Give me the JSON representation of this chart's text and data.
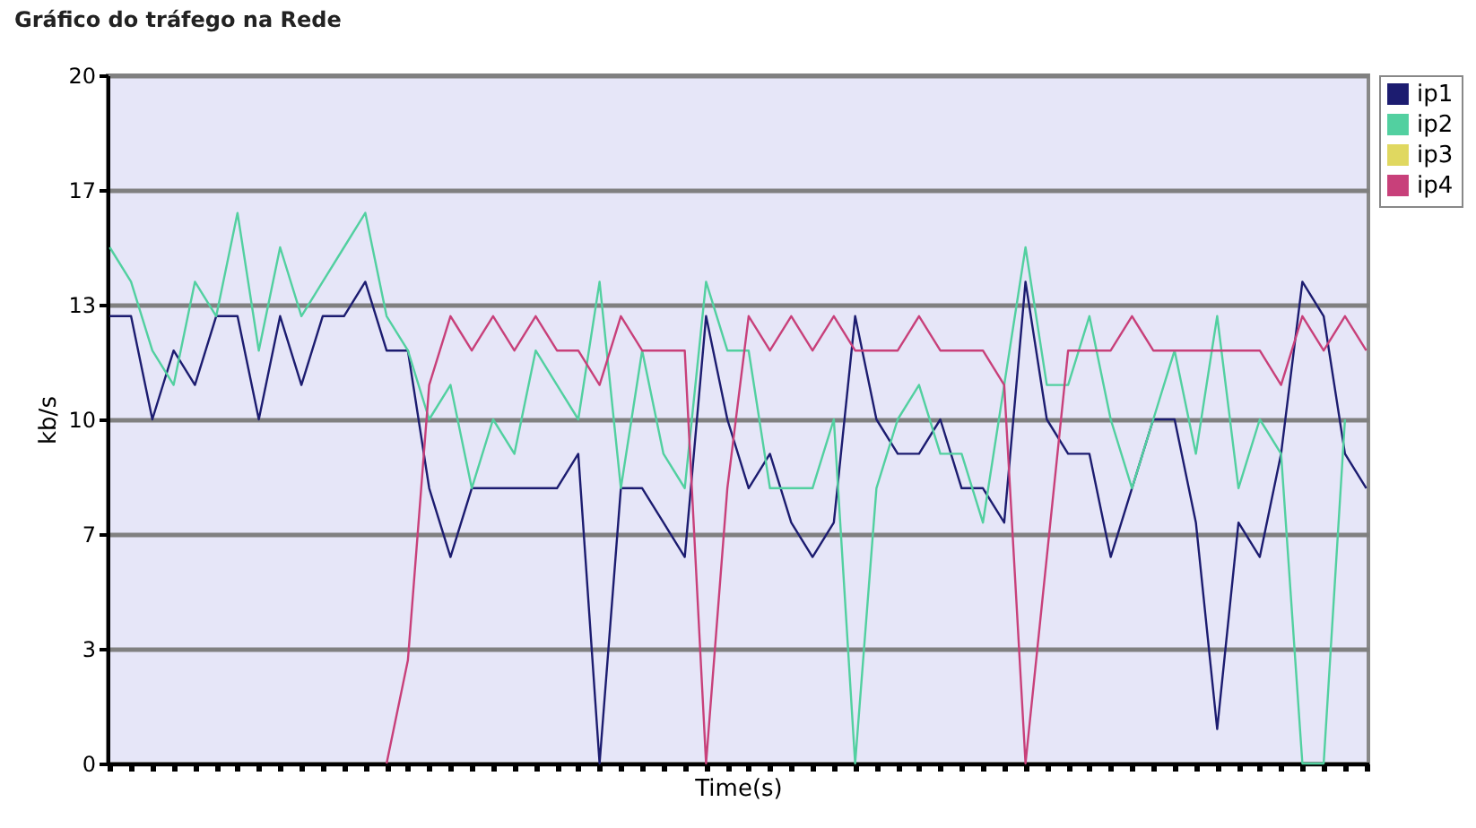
{
  "chart_data": {
    "type": "line",
    "title": "Gráfico do tráfego na Rede",
    "xlabel": "Time(s)",
    "ylabel": "kb/s",
    "categories": [
      null,
      null,
      null,
      null,
      null,
      null,
      null,
      null,
      null,
      null,
      null,
      null,
      null,
      null,
      null,
      null,
      null,
      null,
      null,
      null,
      null,
      null,
      null,
      null,
      null,
      null,
      null,
      null,
      null,
      null,
      null,
      null,
      null,
      null,
      null,
      null,
      null,
      null,
      null,
      null,
      null,
      null,
      null,
      null,
      null,
      null,
      null,
      null,
      null,
      null,
      null,
      null,
      null,
      null,
      null,
      null,
      null,
      null,
      null,
      null
    ],
    "series": [
      {
        "name": "ip1",
        "color": "#1c1c70",
        "values": [
          13,
          13,
          10,
          12,
          11,
          13,
          13,
          10,
          13,
          11,
          13,
          13,
          14,
          12,
          12,
          8,
          6,
          8,
          8,
          8,
          8,
          8,
          9,
          0,
          8,
          8,
          7,
          6,
          13,
          10,
          8,
          9,
          7,
          6,
          7,
          13,
          10,
          9,
          9,
          10,
          8,
          8,
          7,
          14,
          10,
          9,
          9,
          6,
          8,
          10,
          10,
          7,
          1,
          7,
          6,
          9,
          14,
          13,
          9,
          8
        ]
      },
      {
        "name": "ip2",
        "color": "#52d0a0",
        "values": [
          15,
          14,
          12,
          11,
          14,
          13,
          16,
          12,
          15,
          13,
          14,
          15,
          16,
          13,
          12,
          10,
          11,
          8,
          10,
          9,
          12,
          11,
          10,
          14,
          8,
          12,
          9,
          8,
          14,
          12,
          12,
          8,
          8,
          8,
          10,
          0,
          8,
          10,
          11,
          9,
          9,
          7,
          11,
          15,
          11,
          11,
          13,
          10,
          8,
          10,
          12,
          9,
          13,
          8,
          10,
          9,
          0,
          0,
          10,
          null
        ]
      },
      {
        "name": "ip3",
        "color": "#e0d860",
        "values": [
          null,
          null,
          null,
          null,
          null,
          null,
          null,
          null,
          null,
          null,
          null,
          null,
          null,
          null,
          null,
          null,
          null,
          null,
          null,
          null,
          null,
          null,
          null,
          null,
          null,
          null,
          null,
          null,
          null,
          null,
          null,
          null,
          null,
          null,
          null,
          null,
          null,
          null,
          null,
          null,
          null,
          null,
          null,
          null,
          null,
          null,
          null,
          null,
          null,
          null,
          null,
          null,
          null,
          null,
          null,
          null,
          null,
          null,
          null,
          null
        ]
      },
      {
        "name": "ip4",
        "color": "#c8407a",
        "values": [
          null,
          null,
          null,
          null,
          null,
          null,
          null,
          null,
          null,
          null,
          null,
          null,
          null,
          0,
          3,
          11,
          13,
          12,
          13,
          12,
          13,
          12,
          12,
          11,
          13,
          12,
          12,
          12,
          0,
          8,
          13,
          12,
          13,
          12,
          13,
          12,
          12,
          12,
          13,
          12,
          12,
          12,
          11,
          0,
          6,
          12,
          12,
          12,
          13,
          12,
          12,
          12,
          12,
          12,
          12,
          11,
          13,
          12,
          13,
          12
        ]
      }
    ],
    "ylim": [
      0,
      20
    ],
    "yticks": [
      0,
      {
        "value": 3.33,
        "label": "3"
      },
      {
        "value": 6.67,
        "label": "7"
      },
      10,
      {
        "value": 13.33,
        "label": "13"
      },
      {
        "value": 16.67,
        "label": "17"
      },
      20
    ],
    "grid": "y",
    "legend": "right",
    "tick_labels": "y",
    "marker": "none"
  }
}
